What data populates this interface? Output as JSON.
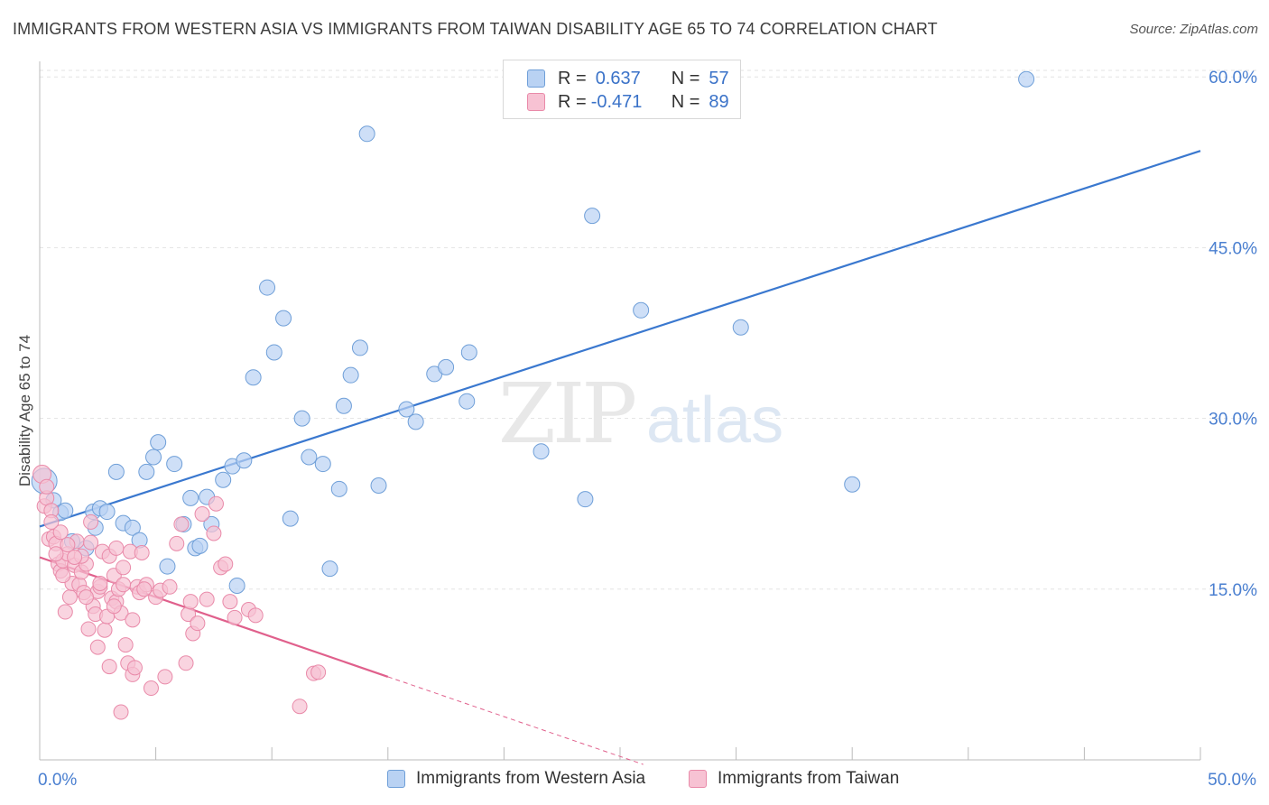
{
  "header": {
    "title": "IMMIGRANTS FROM WESTERN ASIA VS IMMIGRANTS FROM TAIWAN DISABILITY AGE 65 TO 74 CORRELATION CHART",
    "source": "Source: ZipAtlas.com"
  },
  "watermark": {
    "zip": "ZIP",
    "atlas": "atlas"
  },
  "legend": {
    "r_label": "R =",
    "n_label": "N =",
    "series": [
      {
        "r": "0.637",
        "n": "57"
      },
      {
        "r": "-0.471",
        "n": "89"
      }
    ]
  },
  "bottom_legend": [
    "Immigrants from Western Asia",
    "Immigrants from Taiwan"
  ],
  "colors": {
    "blue_fill": "#b9d2f3",
    "blue_stroke": "#6f9fd8",
    "blue_line": "#3a78cf",
    "pink_fill": "#f7c2d3",
    "pink_stroke": "#e98aa9",
    "pink_line": "#e0608c",
    "axis_text": "#4a7fd0",
    "grid": "#e3e3e3"
  },
  "chart_data": {
    "type": "scatter",
    "ylabel": "Disability Age 65 to 74",
    "xlim": [
      0,
      50
    ],
    "ylim": [
      0,
      62
    ],
    "x_tick_labels": [
      {
        "value": 0,
        "label": "0.0%"
      },
      {
        "value": 50,
        "label": "50.0%"
      }
    ],
    "y_tick_labels": [
      {
        "value": 15,
        "label": "15.0%"
      },
      {
        "value": 30,
        "label": "30.0%"
      },
      {
        "value": 45,
        "label": "45.0%"
      },
      {
        "value": 60,
        "label": "60.0%"
      }
    ],
    "x_minor_ticks": [
      0,
      5,
      10,
      15,
      20,
      25,
      30,
      35,
      40,
      45,
      50
    ],
    "grid": true,
    "legend_placement": "top-center",
    "series": [
      {
        "name": "Immigrants from Western Asia",
        "r": 0.637,
        "n": 57,
        "trend": {
          "x1": 0,
          "y1": 20.5,
          "x2": 50,
          "y2": 53.5
        },
        "points": [
          [
            0.2,
            24.5
          ],
          [
            0.6,
            22.8
          ],
          [
            0.9,
            21.7
          ],
          [
            1.1,
            21.9
          ],
          [
            2.3,
            21.8
          ],
          [
            1.4,
            19.2
          ],
          [
            2.0,
            18.6
          ],
          [
            2.4,
            20.4
          ],
          [
            2.6,
            22.1
          ],
          [
            2.9,
            21.8
          ],
          [
            3.3,
            25.3
          ],
          [
            3.6,
            20.8
          ],
          [
            4.0,
            20.4
          ],
          [
            4.3,
            19.3
          ],
          [
            4.6,
            25.3
          ],
          [
            4.9,
            26.6
          ],
          [
            5.1,
            27.9
          ],
          [
            5.5,
            17.0
          ],
          [
            5.8,
            26.0
          ],
          [
            6.2,
            20.7
          ],
          [
            6.5,
            23.0
          ],
          [
            6.7,
            18.6
          ],
          [
            6.9,
            18.8
          ],
          [
            7.2,
            23.1
          ],
          [
            7.4,
            20.7
          ],
          [
            7.9,
            24.6
          ],
          [
            8.3,
            25.8
          ],
          [
            8.8,
            26.3
          ],
          [
            8.5,
            15.3
          ],
          [
            9.2,
            33.6
          ],
          [
            10.1,
            35.8
          ],
          [
            9.8,
            41.5
          ],
          [
            10.5,
            38.8
          ],
          [
            10.8,
            21.2
          ],
          [
            11.3,
            30.0
          ],
          [
            11.6,
            26.6
          ],
          [
            12.2,
            26.0
          ],
          [
            12.5,
            16.8
          ],
          [
            12.9,
            23.8
          ],
          [
            13.1,
            31.1
          ],
          [
            13.4,
            33.8
          ],
          [
            13.8,
            36.2
          ],
          [
            14.1,
            55.0
          ],
          [
            14.6,
            24.1
          ],
          [
            15.8,
            30.8
          ],
          [
            16.2,
            29.7
          ],
          [
            17.0,
            33.9
          ],
          [
            17.5,
            34.5
          ],
          [
            18.5,
            35.8
          ],
          [
            18.4,
            31.5
          ],
          [
            21.6,
            27.1
          ],
          [
            23.5,
            22.9
          ],
          [
            23.8,
            47.8
          ],
          [
            25.9,
            39.5
          ],
          [
            30.2,
            38.0
          ],
          [
            35.0,
            24.2
          ],
          [
            42.5,
            59.8
          ]
        ]
      },
      {
        "name": "Immigrants from Taiwan",
        "r": -0.471,
        "n": 89,
        "trend": {
          "x1": 0,
          "y1": 17.8,
          "x2": 15,
          "y2": 7.3
        },
        "trend_dashed": {
          "x1": 15,
          "x2": 26,
          "y2": -0.4
        },
        "points": [
          [
            0.1,
            25.1
          ],
          [
            0.2,
            22.3
          ],
          [
            0.3,
            23.0
          ],
          [
            0.4,
            19.4
          ],
          [
            0.5,
            21.9
          ],
          [
            0.6,
            19.6
          ],
          [
            0.7,
            19.0
          ],
          [
            0.8,
            17.2
          ],
          [
            0.9,
            16.6
          ],
          [
            1.0,
            17.5
          ],
          [
            1.1,
            13.0
          ],
          [
            1.2,
            18.1
          ],
          [
            1.3,
            14.3
          ],
          [
            1.4,
            15.5
          ],
          [
            1.5,
            17.1
          ],
          [
            1.6,
            19.2
          ],
          [
            1.7,
            15.4
          ],
          [
            1.8,
            16.5
          ],
          [
            1.9,
            14.7
          ],
          [
            2.0,
            17.2
          ],
          [
            2.1,
            11.5
          ],
          [
            2.2,
            20.9
          ],
          [
            2.3,
            13.5
          ],
          [
            2.4,
            12.8
          ],
          [
            2.5,
            14.8
          ],
          [
            2.6,
            15.2
          ],
          [
            2.7,
            18.3
          ],
          [
            2.8,
            11.4
          ],
          [
            2.9,
            12.6
          ],
          [
            3.0,
            8.2
          ],
          [
            3.1,
            14.2
          ],
          [
            3.2,
            16.2
          ],
          [
            3.3,
            13.9
          ],
          [
            3.4,
            15.0
          ],
          [
            3.5,
            12.9
          ],
          [
            3.6,
            16.9
          ],
          [
            3.7,
            10.1
          ],
          [
            3.8,
            8.5
          ],
          [
            3.9,
            18.3
          ],
          [
            4.0,
            7.5
          ],
          [
            4.1,
            8.1
          ],
          [
            4.2,
            15.2
          ],
          [
            4.3,
            14.7
          ],
          [
            4.4,
            18.2
          ],
          [
            4.6,
            15.4
          ],
          [
            4.8,
            6.3
          ],
          [
            5.0,
            14.3
          ],
          [
            5.2,
            14.9
          ],
          [
            5.4,
            7.3
          ],
          [
            5.6,
            15.2
          ],
          [
            5.9,
            19.0
          ],
          [
            6.1,
            20.7
          ],
          [
            6.3,
            8.5
          ],
          [
            6.4,
            12.8
          ],
          [
            6.5,
            13.9
          ],
          [
            6.6,
            11.1
          ],
          [
            6.8,
            12.0
          ],
          [
            7.0,
            21.6
          ],
          [
            7.2,
            14.1
          ],
          [
            7.5,
            19.9
          ],
          [
            7.6,
            22.5
          ],
          [
            7.8,
            16.9
          ],
          [
            8.0,
            17.2
          ],
          [
            8.2,
            13.9
          ],
          [
            8.4,
            12.5
          ],
          [
            9.0,
            13.2
          ],
          [
            9.3,
            12.7
          ],
          [
            11.2,
            4.7
          ],
          [
            11.8,
            7.6
          ],
          [
            12.0,
            7.7
          ],
          [
            0.3,
            24.0
          ],
          [
            0.9,
            20.0
          ],
          [
            1.2,
            18.9
          ],
          [
            1.8,
            17.9
          ],
          [
            2.2,
            19.1
          ],
          [
            2.6,
            15.5
          ],
          [
            3.0,
            17.9
          ],
          [
            3.3,
            18.6
          ],
          [
            3.6,
            15.4
          ],
          [
            4.0,
            12.3
          ],
          [
            1.0,
            16.2
          ],
          [
            2.0,
            14.3
          ],
          [
            3.2,
            13.5
          ],
          [
            0.5,
            20.9
          ],
          [
            1.5,
            17.8
          ],
          [
            2.5,
            9.9
          ],
          [
            3.5,
            4.2
          ],
          [
            4.5,
            15.0
          ],
          [
            0.7,
            18.1
          ]
        ]
      }
    ]
  }
}
